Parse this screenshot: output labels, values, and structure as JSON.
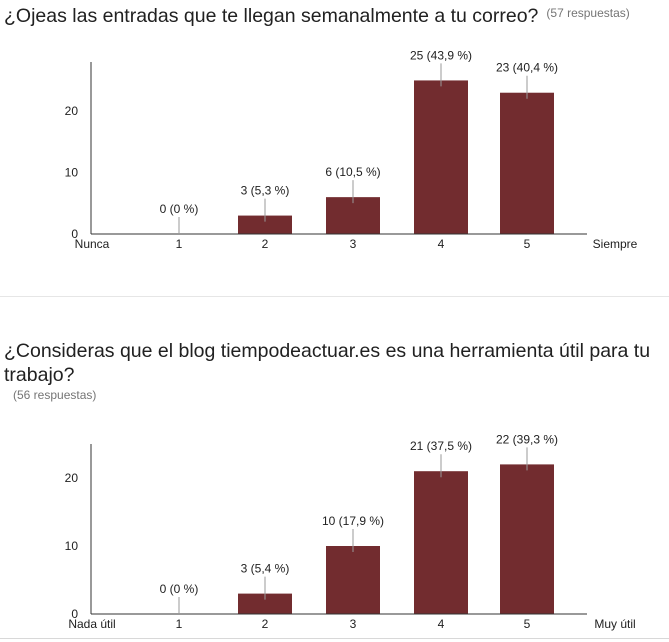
{
  "questions": [
    {
      "title": "¿Ojeas las entradas que te llegan semanalmente a tu correo?",
      "responses": "(57 respuestas)"
    },
    {
      "title_line1": "¿Consideras que el blog tiempodeactuar.es es una herramienta útil para tu",
      "title_line2": "trabajo?",
      "responses": "(56 respuestas)"
    }
  ],
  "colors": {
    "bar": "#722c2f",
    "axis": "#333333",
    "text": "#212121",
    "muted": "#757575"
  },
  "chart_data": [
    {
      "type": "bar",
      "categories": [
        "1",
        "2",
        "3",
        "4",
        "5"
      ],
      "values": [
        0,
        3,
        6,
        25,
        23
      ],
      "labels": [
        "0 (0 %)",
        "3 (5,3 %)",
        "6 (10,5 %)",
        "25 (43,9 %)",
        "23 (40,4 %)"
      ],
      "yticks": [
        "0",
        "10",
        "20"
      ],
      "ylim": [
        0,
        28
      ],
      "low_label": "Nunca",
      "high_label": "Siempre"
    },
    {
      "type": "bar",
      "categories": [
        "1",
        "2",
        "3",
        "4",
        "5"
      ],
      "values": [
        0,
        3,
        10,
        21,
        22
      ],
      "labels": [
        "0 (0 %)",
        "3 (5,4 %)",
        "10 (17,9 %)",
        "21 (37,5 %)",
        "22 (39,3 %)"
      ],
      "yticks": [
        "0",
        "10",
        "20"
      ],
      "ylim": [
        0,
        25
      ],
      "low_label": "Nada útil",
      "high_label": "Muy útil"
    }
  ]
}
